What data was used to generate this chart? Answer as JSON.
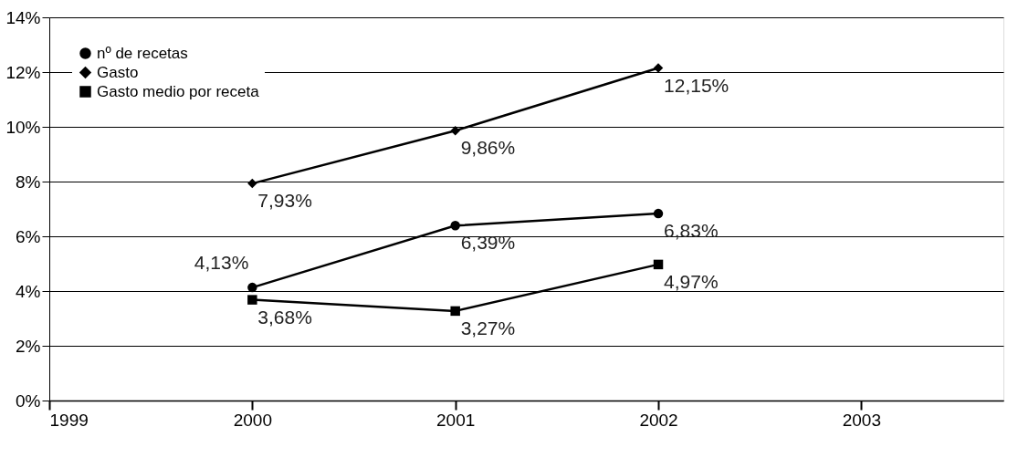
{
  "chart_data": {
    "type": "line",
    "x": [
      2000,
      2001,
      2002
    ],
    "series": [
      {
        "name": "nº de recetas",
        "color": "#000000",
        "marker": "circle",
        "values": [
          4.13,
          6.39,
          6.83
        ],
        "value_labels": [
          "4,13%",
          "6,39%",
          "6,83%"
        ]
      },
      {
        "name": "Gasto",
        "color": "#000000",
        "marker": "diamond",
        "values": [
          7.93,
          9.86,
          12.15
        ],
        "value_labels": [
          "7,93%",
          "9,86%",
          "12,15%"
        ]
      },
      {
        "name": "Gasto medio por receta",
        "color": "#000000",
        "marker": "square",
        "values": [
          3.68,
          3.27,
          4.97
        ],
        "value_labels": [
          "3,68%",
          "3,27%",
          "4,97%"
        ]
      }
    ],
    "xlim": [
      1999,
      2003.7
    ],
    "xticks": [
      1999,
      2000,
      2001,
      2002,
      2003
    ],
    "ylim": [
      0,
      14
    ],
    "yticks": [
      {
        "value": 0,
        "label": "0%"
      },
      {
        "value": 2,
        "label": "2%"
      },
      {
        "value": 4,
        "label": "4%"
      },
      {
        "value": 6,
        "label": "6%"
      },
      {
        "value": 8,
        "label": "8%"
      },
      {
        "value": 10,
        "label": "10%"
      },
      {
        "value": 12,
        "label": "12%"
      },
      {
        "value": 14,
        "label": "14%"
      }
    ],
    "grid": "y",
    "legend": "top left",
    "line_style": "solid"
  }
}
